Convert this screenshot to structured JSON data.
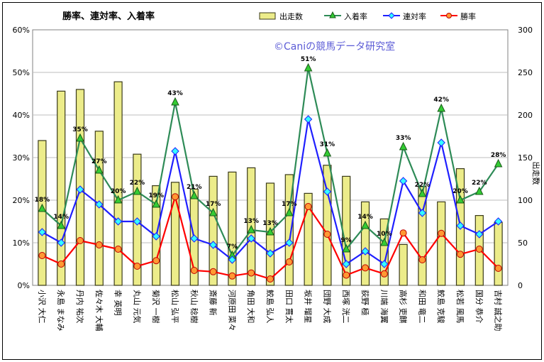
{
  "chart_data": {
    "type": "bar+line",
    "title": "勝率、連対率、入着率",
    "watermark": "©Caniの競馬データ研究室",
    "y_left": {
      "ticks": [
        "0%",
        "10%",
        "20%",
        "30%",
        "40%",
        "50%",
        "60%"
      ],
      "range": [
        0,
        0.6
      ]
    },
    "y_right": {
      "label": "出走数",
      "ticks": [
        "0",
        "50",
        "100",
        "150",
        "200",
        "250",
        "300"
      ],
      "range": [
        0,
        300
      ]
    },
    "legend": {
      "position": "top-right",
      "items": [
        {
          "name": "出走数",
          "color": "#e8e07a"
        },
        {
          "name": "入着率",
          "color": "#2e8b57"
        },
        {
          "name": "連対率",
          "color": "#1f1fff"
        },
        {
          "name": "勝率",
          "color": "#ff0000"
        }
      ]
    },
    "categories": [
      "小沢 大仁",
      "永島 まなみ",
      "丹内 祐次",
      "佐々木 大輔",
      "幸 英明",
      "丸山 元気",
      "菊沢 一樹",
      "松山 弘平",
      "秋山 稔樹",
      "斎藤 新",
      "河原田 菜々",
      "角田 大和",
      "鮫島 弘人",
      "田口 貫太",
      "坂井 瑠星",
      "団野 大成",
      "西塚 洸二",
      "荻野 極",
      "川端 海翼",
      "高杉 吏麒",
      "和田 竜二",
      "鮫島 克駿",
      "松若 風馬",
      "国分 恭介",
      "吉村 誠之助"
    ],
    "series": [
      {
        "name": "出走数",
        "type": "bar",
        "values": [
          170,
          228,
          230,
          181,
          239,
          154,
          117,
          121,
          113,
          128,
          133,
          138,
          120,
          130,
          108,
          141,
          128,
          98,
          78,
          48,
          116,
          98,
          137,
          82,
          74
        ]
      },
      {
        "name": "入着率",
        "type": "line",
        "values": [
          0.18,
          0.14,
          0.345,
          0.27,
          0.2,
          0.22,
          0.19,
          0.43,
          0.21,
          0.17,
          0.07,
          0.13,
          0.125,
          0.17,
          0.51,
          0.31,
          0.085,
          0.14,
          0.1,
          0.325,
          0.215,
          0.415,
          0.2,
          0.22,
          0.285
        ]
      },
      {
        "name": "連対率",
        "type": "line",
        "values": [
          0.125,
          0.1,
          0.225,
          0.19,
          0.15,
          0.15,
          0.115,
          0.315,
          0.11,
          0.095,
          0.06,
          0.11,
          0.075,
          0.1,
          0.39,
          0.22,
          0.05,
          0.08,
          0.05,
          0.245,
          0.17,
          0.335,
          0.14,
          0.12,
          0.15
        ]
      },
      {
        "name": "勝率",
        "type": "line",
        "values": [
          0.07,
          0.05,
          0.105,
          0.095,
          0.085,
          0.045,
          0.058,
          0.208,
          0.035,
          0.032,
          0.022,
          0.029,
          0.015,
          0.055,
          0.185,
          0.12,
          0.024,
          0.041,
          0.027,
          0.123,
          0.06,
          0.122,
          0.073,
          0.085,
          0.04
        ]
      }
    ],
    "data_labels": [
      "18%",
      "14%",
      "35%",
      "27%",
      "20%",
      "22%",
      "19%",
      "43%",
      "21%",
      "17%",
      "7%",
      "13%",
      "13%",
      "17%",
      "51%",
      "31%",
      "9%",
      "14%",
      "10%",
      "33%",
      "22%",
      "42%",
      "20%",
      "22%",
      "28%"
    ]
  }
}
